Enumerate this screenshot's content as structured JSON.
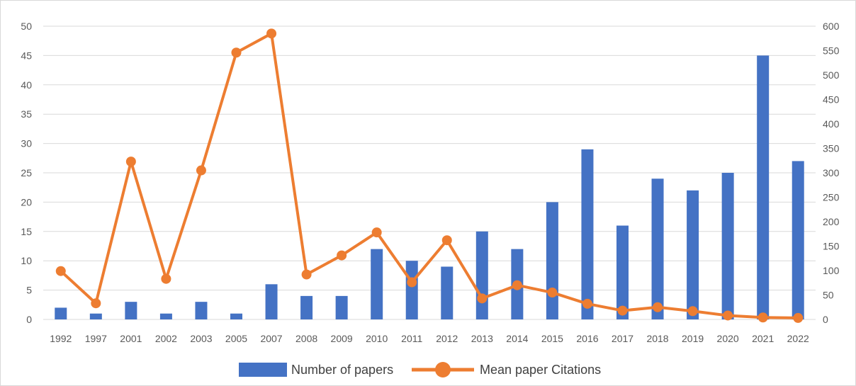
{
  "chart_data": {
    "type": "bar",
    "categories": [
      "1992",
      "1997",
      "2001",
      "2002",
      "2003",
      "2005",
      "2007",
      "2008",
      "2009",
      "2010",
      "2011",
      "2012",
      "2013",
      "2014",
      "2015",
      "2016",
      "2017",
      "2018",
      "2019",
      "2020",
      "2021",
      "2022"
    ],
    "series": [
      {
        "name": "Number of papers",
        "type": "bar",
        "axis": "left",
        "color": "#4472c4",
        "values": [
          2,
          1,
          3,
          1,
          3,
          1,
          6,
          4,
          4,
          12,
          10,
          9,
          15,
          12,
          20,
          29,
          16,
          24,
          22,
          25,
          45,
          27
        ]
      },
      {
        "name": "Mean paper Citations",
        "type": "line",
        "axis": "right",
        "color": "#ed7d31",
        "values": [
          99,
          33,
          323,
          83,
          305,
          546,
          585,
          92,
          131,
          178,
          76,
          162,
          43,
          70,
          55,
          32,
          18,
          25,
          17,
          8,
          4,
          3
        ]
      }
    ],
    "y_left": {
      "min": 0,
      "max": 50,
      "ticks": [
        "0",
        "5",
        "10",
        "15",
        "20",
        "25",
        "30",
        "35",
        "40",
        "45",
        "50"
      ]
    },
    "y_right": {
      "min": 0,
      "max": 600,
      "ticks": [
        "0",
        "50",
        "100",
        "150",
        "200",
        "250",
        "300",
        "350",
        "400",
        "450",
        "500",
        "550",
        "600"
      ]
    },
    "grid": true,
    "legend_position": "bottom"
  }
}
